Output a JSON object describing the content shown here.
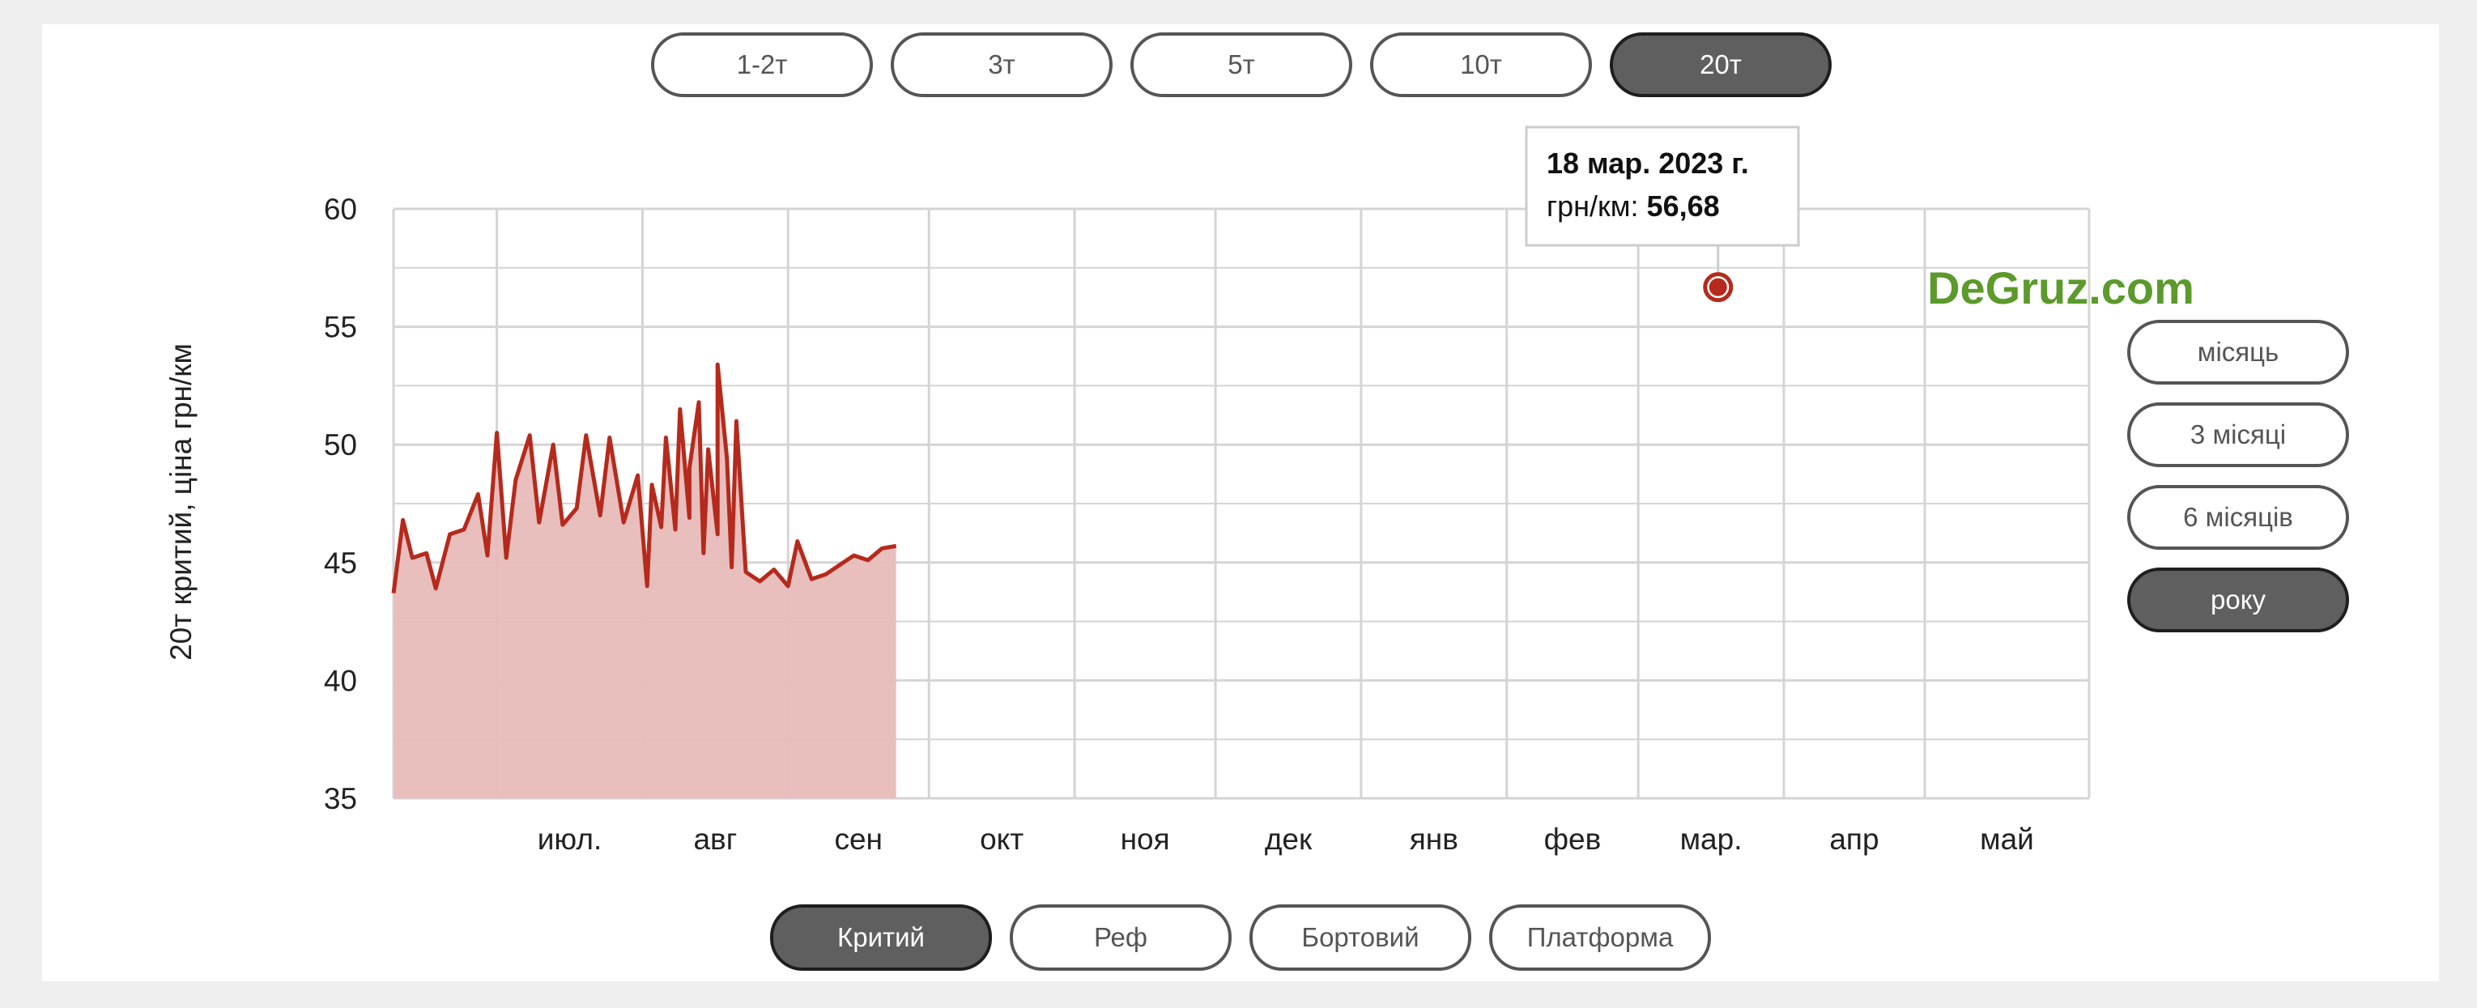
{
  "vehicle_tabs": [
    {
      "label": "1-2т",
      "active": false
    },
    {
      "label": "3т",
      "active": false
    },
    {
      "label": "5т",
      "active": false
    },
    {
      "label": "10т",
      "active": false
    },
    {
      "label": "20т",
      "active": true
    }
  ],
  "period_tabs": [
    {
      "label": "місяць",
      "active": false
    },
    {
      "label": "3 місяці",
      "active": false
    },
    {
      "label": "6 місяців",
      "active": false
    },
    {
      "label": "року",
      "active": true
    }
  ],
  "body_tabs": [
    {
      "label": "Критий",
      "active": true
    },
    {
      "label": "Реф",
      "active": false
    },
    {
      "label": "Бортовий",
      "active": false
    },
    {
      "label": "Платформа",
      "active": false
    }
  ],
  "watermark": "DeGruz.com",
  "colors": {
    "line": "#b52a1c",
    "area": "#e8bcbb",
    "grid": "#d4d4d4",
    "watermark": "#5b9a2b",
    "active_pill": "#5f5f5f"
  },
  "tooltip": {
    "date": "18 мар. 2023 г.",
    "label": "грн/км:",
    "value": "56,68"
  },
  "chart_data": {
    "type": "area",
    "ylabel": "20т критий, ціна грн/км",
    "ylim": [
      35,
      60
    ],
    "yticks": [
      35,
      40,
      45,
      50,
      55,
      60
    ],
    "grid": true,
    "x_range": [
      "2022-06-09",
      "2023-06-05"
    ],
    "x_ticks": [
      {
        "label": "июл.",
        "date": "2022-07-01"
      },
      {
        "label": "авг",
        "date": "2022-08-01"
      },
      {
        "label": "сен",
        "date": "2022-09-01"
      },
      {
        "label": "окт",
        "date": "2022-10-01"
      },
      {
        "label": "ноя",
        "date": "2022-11-01"
      },
      {
        "label": "дек",
        "date": "2022-12-01"
      },
      {
        "label": "янв",
        "date": "2023-01-01"
      },
      {
        "label": "фев",
        "date": "2023-02-01"
      },
      {
        "label": "мар.",
        "date": "2023-03-01"
      },
      {
        "label": "апр",
        "date": "2023-04-01"
      },
      {
        "label": "май",
        "date": "2023-05-01"
      }
    ],
    "highlight": {
      "date": "2023-03-18",
      "y": 56.68
    },
    "series": [
      {
        "points": [
          [
            "2022-06-09",
            43.7
          ],
          [
            "2022-06-11",
            46.8
          ],
          [
            "2022-06-13",
            45.2
          ],
          [
            "2022-06-16",
            45.4
          ],
          [
            "2022-06-18",
            43.9
          ],
          [
            "2022-06-21",
            46.2
          ],
          [
            "2022-06-24",
            46.4
          ],
          [
            "2022-06-27",
            47.9
          ],
          [
            "2022-06-29",
            45.3
          ],
          [
            "2022-07-01",
            50.5
          ],
          [
            "2022-07-03",
            45.2
          ],
          [
            "2022-07-05",
            48.5
          ],
          [
            "2022-07-08",
            50.4
          ],
          [
            "2022-07-10",
            46.7
          ],
          [
            "2022-07-13",
            50.0
          ],
          [
            "2022-07-15",
            46.6
          ],
          [
            "2022-07-18",
            47.3
          ],
          [
            "2022-07-20",
            50.4
          ],
          [
            "2022-07-23",
            47.0
          ],
          [
            "2022-07-25",
            50.3
          ],
          [
            "2022-07-28",
            46.7
          ],
          [
            "2022-07-31",
            48.7
          ],
          [
            "2022-08-02",
            44.0
          ],
          [
            "2022-08-05",
            46.5
          ],
          [
            "2022-08-08",
            46.4
          ],
          [
            "2022-08-11",
            46.9
          ],
          [
            "2022-08-14",
            45.4
          ],
          [
            "2022-08-17",
            46.2
          ],
          [
            "2022-08-20",
            44.8
          ],
          [
            "2022-08-23",
            44.6
          ],
          [
            "2022-08-26",
            44.2
          ],
          [
            "2022-08-29",
            44.7
          ],
          [
            "2022-09-01",
            44.0
          ],
          [
            "2022-09-03",
            45.9
          ],
          [
            "2022-09-06",
            44.3
          ],
          [
            "2022-09-09",
            44.5
          ],
          [
            "2022-09-12",
            44.9
          ],
          [
            "2022-09-15",
            45.3
          ],
          [
            "2022-09-18",
            45.1
          ],
          [
            "2022-09-21",
            45.6
          ],
          [
            "2022-09-24",
            45.7
          ],
          [
            "2022-08-03",
            48.3
          ],
          [
            "2022-08-06",
            50.3
          ],
          [
            "2022-08-09",
            51.5
          ],
          [
            "2022-08-11",
            49.0
          ],
          [
            "2022-08-13",
            51.8
          ],
          [
            "2022-08-15",
            49.8
          ],
          [
            "2022-08-17",
            53.4
          ],
          [
            "2022-08-19",
            49.4
          ],
          [
            "2022-08-21",
            51.0
          ]
        ]
      }
    ]
  }
}
